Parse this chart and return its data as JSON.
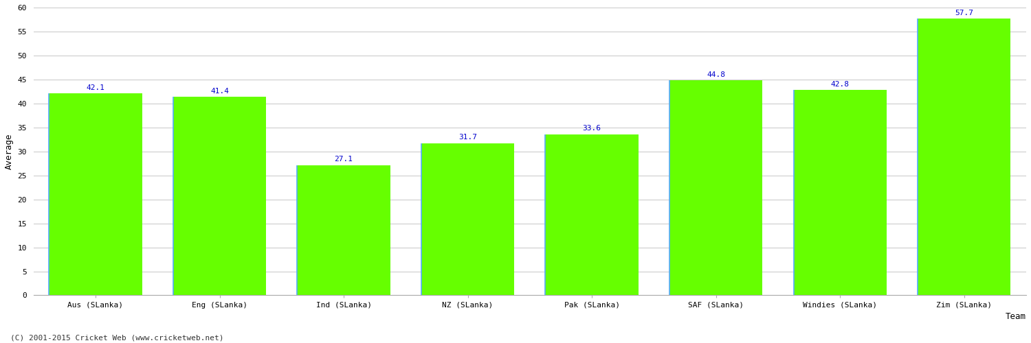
{
  "categories": [
    "Aus (SLanka)",
    "Eng (SLanka)",
    "Ind (SLanka)",
    "NZ (SLanka)",
    "Pak (SLanka)",
    "SAF (SLanka)",
    "Windies (SLanka)",
    "Zim (SLanka)"
  ],
  "values": [
    42.1,
    41.4,
    27.1,
    31.7,
    33.6,
    44.8,
    42.8,
    57.7
  ],
  "bar_color": "#66ff00",
  "bar_left_edge_color": "#44aaff",
  "bar_edge_color": "#66ff00",
  "label_color": "#0000cc",
  "xlabel": "Team",
  "ylabel": "Average",
  "ylim": [
    0,
    60
  ],
  "yticks": [
    0,
    5,
    10,
    15,
    20,
    25,
    30,
    35,
    40,
    45,
    50,
    55,
    60
  ],
  "grid_color": "#cccccc",
  "background_color": "#ffffff",
  "fig_background_color": "#ffffff",
  "label_fontsize": 8,
  "axis_fontsize": 9,
  "tick_fontsize": 8,
  "footer": "(C) 2001-2015 Cricket Web (www.cricketweb.net)",
  "bar_width": 0.75
}
